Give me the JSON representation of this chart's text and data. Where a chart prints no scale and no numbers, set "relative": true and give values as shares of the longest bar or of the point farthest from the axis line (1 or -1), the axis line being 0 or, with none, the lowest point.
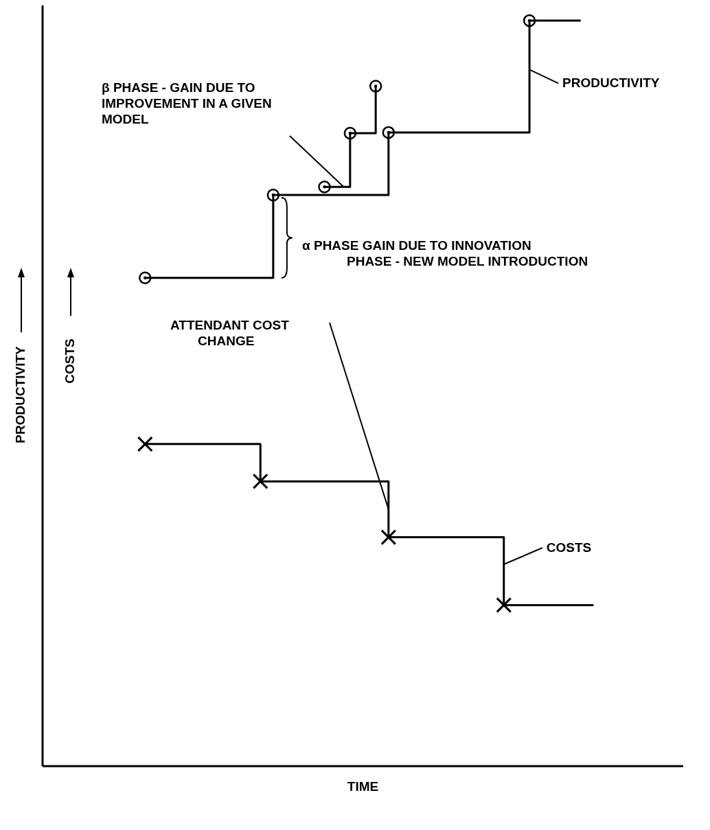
{
  "chart_data": {
    "type": "step",
    "relative": true,
    "xlabel": "TIME",
    "y2label": "COSTS",
    "tick_labels": false,
    "legend": "right",
    "line_style": "solid",
    "categories": [
      null,
      null,
      null,
      null,
      null,
      null,
      null,
      null,
      null,
      null,
      null,
      null,
      null,
      null,
      null,
      null,
      null,
      null,
      null,
      null,
      null,
      null,
      null,
      null,
      null,
      null,
      null,
      null,
      null,
      null,
      null,
      null,
      null,
      null,
      null,
      null,
      null,
      null,
      null,
      null,
      null
    ],
    "series": [
      {
        "name": "PRODUCTIVITY",
        "color": "#000000",
        "values": [
          0.655,
          0.655,
          0.655,
          0.655,
          0.655,
          0.655,
          0.655,
          0.655,
          0.655,
          0.655,
          0.766,
          0.766,
          0.766,
          0.766,
          0.766,
          0.766,
          0.766,
          0.766,
          0.766,
          0.85,
          0.85,
          0.85,
          0.85,
          0.85,
          0.85,
          0.85,
          0.85,
          0.85,
          0.85,
          0.85,
          1.0,
          1.0,
          1.0,
          1.0,
          1.0,
          null,
          null,
          null,
          null,
          null,
          null
        ]
      },
      {
        "color": "#000000",
        "values": [
          null,
          null,
          null,
          null,
          null,
          null,
          null,
          null,
          null,
          null,
          null,
          null,
          null,
          null,
          0.777,
          0.777,
          0.849,
          0.849,
          0.912,
          null,
          null,
          null,
          null,
          null,
          null,
          null,
          null,
          null,
          null,
          null,
          null,
          null,
          null,
          null,
          null,
          null,
          null,
          null,
          null,
          null,
          null
        ]
      },
      {
        "name": "COSTS",
        "color": "#000000",
        "values": [
          0.432,
          0.432,
          0.432,
          0.432,
          0.432,
          0.432,
          0.432,
          0.432,
          0.432,
          0.382,
          0.382,
          0.382,
          0.382,
          0.382,
          0.382,
          0.382,
          0.382,
          0.382,
          0.382,
          0.307,
          0.307,
          0.307,
          0.307,
          0.307,
          0.307,
          0.307,
          0.307,
          0.307,
          0.216,
          0.216,
          0.216,
          0.216,
          0.216,
          0.216,
          0.216,
          0.216,
          null,
          null,
          null,
          null,
          null
        ]
      }
    ],
    "annotations": [
      "β PHASE - GAIN DUE TO IMPROVEMENT IN A GIVEN MODEL",
      "α PHASE GAIN DUE TO INNOVATION PHASE - NEW MODEL INTRODUCTION",
      "ATTENDANT COST CHANGE",
      "PRODUCTIVITY"
    ]
  }
}
